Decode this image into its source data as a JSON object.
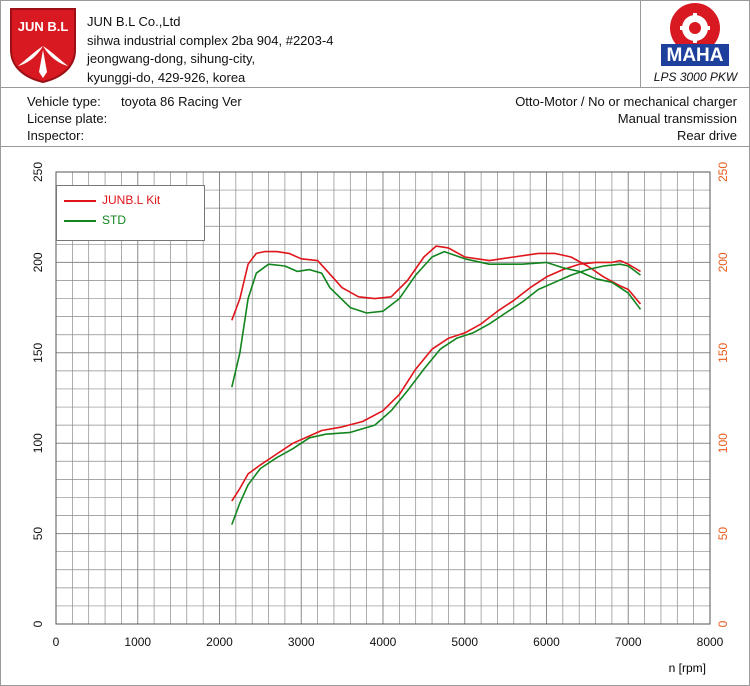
{
  "company": {
    "logo_text": "JUN B.L",
    "name": "JUN B.L Co.,Ltd",
    "address_lines": [
      "sihwa industrial complex 2ba 904, #2203-4",
      "jeongwang-dong, sihung-city,",
      "kyunggi-do, 429-926, korea"
    ]
  },
  "maha": {
    "logo_text": "MAHA",
    "ring_text": "Maschinenbau Haldenwang",
    "caption": "LPS 3000 PKW"
  },
  "vehicle": {
    "type_label": "Vehicle type:",
    "type_value": "toyota 86 Racing Ver",
    "license_label": "License plate:",
    "license_value": "",
    "inspector_label": "Inspector:",
    "inspector_value": "",
    "engine": "Otto-Motor / No or mechanical charger",
    "transmission": "Manual transmission",
    "drive": "Rear drive"
  },
  "colors": {
    "kit": "#e0151b",
    "std": "#12851e",
    "right_axis": "#e85a1a",
    "grid": "#8a8a8a"
  },
  "chart_data": {
    "type": "line",
    "xlabel": "n [rpm]",
    "xlim": [
      0,
      8000
    ],
    "x_ticks": [
      0,
      1000,
      2000,
      3000,
      4000,
      5000,
      6000,
      7000,
      8000
    ],
    "ylim": [
      0,
      250
    ],
    "y_ticks_left": [
      0,
      50,
      100,
      150,
      200,
      250
    ],
    "y_ticks_right": [
      0,
      50,
      100,
      150,
      200,
      250
    ],
    "grid": true,
    "legend_position": "top-left",
    "series": [
      {
        "name": "JUNB.L Kit",
        "color_key": "kit",
        "curves": {
          "torque": [
            [
              2150,
              168
            ],
            [
              2250,
              180
            ],
            [
              2350,
              199
            ],
            [
              2450,
              205
            ],
            [
              2550,
              206
            ],
            [
              2700,
              206
            ],
            [
              2850,
              205
            ],
            [
              3000,
              202
            ],
            [
              3200,
              201
            ],
            [
              3300,
              196
            ],
            [
              3500,
              186
            ],
            [
              3700,
              181
            ],
            [
              3900,
              180
            ],
            [
              4100,
              181
            ],
            [
              4300,
              190
            ],
            [
              4500,
              203
            ],
            [
              4650,
              209
            ],
            [
              4800,
              208
            ],
            [
              5000,
              203
            ],
            [
              5300,
              201
            ],
            [
              5600,
              203
            ],
            [
              5900,
              205
            ],
            [
              6100,
              205
            ],
            [
              6300,
              203
            ],
            [
              6500,
              198
            ],
            [
              6700,
              192
            ],
            [
              6900,
              187
            ],
            [
              7000,
              185
            ],
            [
              7150,
              177
            ]
          ],
          "power": [
            [
              2150,
              68
            ],
            [
              2250,
              75
            ],
            [
              2350,
              83
            ],
            [
              2500,
              88
            ],
            [
              2700,
              94
            ],
            [
              2900,
              100
            ],
            [
              3100,
              104
            ],
            [
              3250,
              107
            ],
            [
              3500,
              109
            ],
            [
              3750,
              112
            ],
            [
              4000,
              118
            ],
            [
              4200,
              127
            ],
            [
              4400,
              141
            ],
            [
              4600,
              152
            ],
            [
              4800,
              158
            ],
            [
              5000,
              161
            ],
            [
              5200,
              166
            ],
            [
              5400,
              173
            ],
            [
              5600,
              179
            ],
            [
              5800,
              186
            ],
            [
              6000,
              192
            ],
            [
              6200,
              196
            ],
            [
              6400,
              199
            ],
            [
              6600,
              200
            ],
            [
              6800,
              200
            ],
            [
              6900,
              201
            ],
            [
              7000,
              199
            ],
            [
              7150,
              195
            ]
          ]
        }
      },
      {
        "name": "STD",
        "color_key": "std",
        "curves": {
          "torque": [
            [
              2150,
              131
            ],
            [
              2250,
              150
            ],
            [
              2350,
              180
            ],
            [
              2450,
              194
            ],
            [
              2600,
              199
            ],
            [
              2800,
              198
            ],
            [
              2950,
              195
            ],
            [
              3100,
              196
            ],
            [
              3250,
              194
            ],
            [
              3350,
              186
            ],
            [
              3600,
              175
            ],
            [
              3800,
              172
            ],
            [
              4000,
              173
            ],
            [
              4200,
              180
            ],
            [
              4400,
              193
            ],
            [
              4600,
              203
            ],
            [
              4750,
              206
            ],
            [
              5000,
              202
            ],
            [
              5300,
              199
            ],
            [
              5700,
              199
            ],
            [
              6000,
              200
            ],
            [
              6200,
              197
            ],
            [
              6400,
              195
            ],
            [
              6600,
              191
            ],
            [
              6800,
              189
            ],
            [
              7000,
              183
            ],
            [
              7150,
              174
            ]
          ],
          "power": [
            [
              2150,
              55
            ],
            [
              2250,
              67
            ],
            [
              2350,
              77
            ],
            [
              2500,
              86
            ],
            [
              2700,
              92
            ],
            [
              2900,
              97
            ],
            [
              3100,
              103
            ],
            [
              3300,
              105
            ],
            [
              3600,
              106
            ],
            [
              3900,
              110
            ],
            [
              4100,
              118
            ],
            [
              4300,
              129
            ],
            [
              4500,
              141
            ],
            [
              4700,
              152
            ],
            [
              4900,
              158
            ],
            [
              5100,
              161
            ],
            [
              5300,
              166
            ],
            [
              5500,
              172
            ],
            [
              5700,
              178
            ],
            [
              5900,
              185
            ],
            [
              6100,
              189
            ],
            [
              6300,
              193
            ],
            [
              6500,
              196
            ],
            [
              6700,
              198
            ],
            [
              6900,
              199
            ],
            [
              7000,
              198
            ],
            [
              7150,
              193
            ]
          ]
        }
      }
    ]
  }
}
